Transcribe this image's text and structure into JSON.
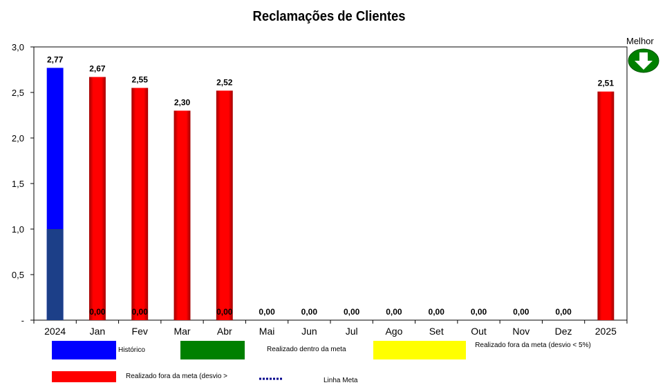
{
  "chart_data": {
    "type": "bar",
    "title": "Reclamações de Clientes",
    "categories": [
      "2024",
      "Jan",
      "Fev",
      "Mar",
      "Abr",
      "Mai",
      "Jun",
      "Jul",
      "Ago",
      "Set",
      "Out",
      "Nov",
      "Dez",
      "2025"
    ],
    "values": [
      2.77,
      2.67,
      2.55,
      2.3,
      2.52,
      0.0,
      0.0,
      0.0,
      0.0,
      0.0,
      0.0,
      0.0,
      0.0,
      2.51
    ],
    "value_labels": [
      "2,77",
      "2,67",
      "2,55",
      "2,30",
      "2,52",
      "0,00",
      "0,00",
      "0,00",
      "0,00",
      "0,00",
      "0,00",
      "0,00",
      "0,00",
      "2,51"
    ],
    "secondary_series": {
      "values": [
        1.0,
        null,
        null,
        null,
        null,
        null,
        null,
        null,
        null,
        null,
        null,
        null,
        null,
        null
      ]
    },
    "zero_labels": {
      "categories": [
        "Jan",
        "Fev",
        "Abr"
      ],
      "labels": [
        "0,00",
        "0,00",
        "0,00"
      ]
    },
    "bar_status": [
      "historico",
      "fora_maior",
      "fora_maior",
      "fora_maior",
      "fora_maior",
      "none",
      "none",
      "none",
      "none",
      "none",
      "none",
      "none",
      "none",
      "fora_maior"
    ],
    "ylim": [
      0,
      3.0
    ],
    "y_ticks": [
      0,
      0.5,
      1.0,
      1.5,
      2.0,
      2.5,
      3.0
    ],
    "y_tick_labels": [
      "-",
      "0,5",
      "1,0",
      "1,5",
      "2,0",
      "2,5",
      "3,0"
    ],
    "grid": false,
    "legend_placement": "bottom",
    "legend": [
      {
        "key": "historico",
        "label": "Histórico",
        "color": "#0000ff"
      },
      {
        "key": "dentro",
        "label": "Realizado dentro da meta",
        "color": "#008000"
      },
      {
        "key": "fora_menor",
        "label": "Realizado fora da meta (desvio < 5%)",
        "color": "#ffff00"
      },
      {
        "key": "fora_maior",
        "label": "Realizado fora da meta (desvio >",
        "color": "#ff0000"
      },
      {
        "key": "meta",
        "label": "Linha Meta",
        "color": "#00008b"
      }
    ]
  },
  "better_indicator": {
    "label": "Melhor",
    "icon": "down-arrow-icon",
    "color": "#008000"
  },
  "colors": {
    "historico_base": "#1c3f88",
    "bar_dark_edge": "#7a0000",
    "axis": "#000000"
  }
}
